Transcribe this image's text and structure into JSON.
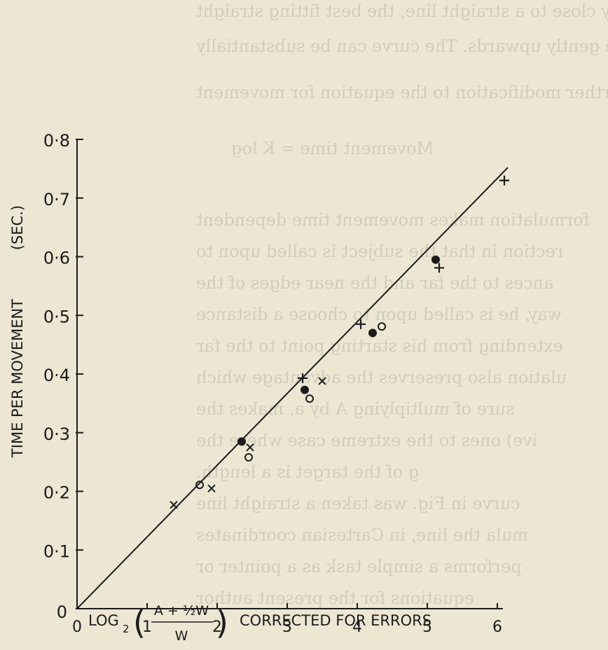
{
  "colors": {
    "paper": "#ece6d3",
    "ink": "#1c1c1c",
    "bleed_through": "#5a554a"
  },
  "bleed_through_lines": [
    "pretty close to a straight line, the best fitting straight",
    "curve gently upwards. The curve can be substantially",
    "ing a further modification to the equation for movement",
    "Movement time = K log",
    "formulation makes movement time dependent",
    "rection in that the subject is called upon to",
    "ances to the far and the near edges of the",
    "way, he is called upon to choose a distance",
    "extending from his starting point to the far",
    "ulation also preserves the advantage which",
    "sure of multiplying A by a, makes the",
    "ive) ones to the extreme case where the",
    "g of the target is a length.",
    "curve in Fig. was taken a straight line",
    "mula the line, in Cartesian coordinates",
    "performs a simple task as a pointer or",
    "equations for the present author"
  ],
  "chart_data": {
    "type": "scatter",
    "xlabel": "LOG₂ ( A + ½W / W ) CORRECTED FOR ERRORS",
    "xlabel_parts": {
      "prefix": "LOG",
      "subscript": "2",
      "numerator": "A + ½W",
      "denominator": "W",
      "suffix": "CORRECTED FOR ERRORS"
    },
    "ylabel": "TIME PER MOVEMENT (SEC.)",
    "ylabel_parts": {
      "main": "TIME PER MOVEMENT",
      "unit": "(SEC.)"
    },
    "xlim": [
      0,
      6.5
    ],
    "ylim": [
      0,
      0.8
    ],
    "x_ticks": [
      0,
      1,
      2,
      3,
      4,
      5,
      6
    ],
    "x_tick_labels": [
      "0",
      "1",
      "2",
      "3",
      "4",
      "5",
      "6"
    ],
    "y_ticks": [
      0,
      0.1,
      0.2,
      0.3,
      0.4,
      0.5,
      0.6,
      0.7,
      0.8
    ],
    "y_tick_labels": [
      "0",
      "0·1",
      "0·2",
      "0·3",
      "0·4",
      "0·5",
      "0·6",
      "0·7",
      "0·8"
    ],
    "grid": false,
    "legend": "none",
    "series": [
      {
        "marker": "filled-circle",
        "x": [
          2.35,
          3.25,
          4.22,
          5.12
        ],
        "y": [
          0.285,
          0.373,
          0.47,
          0.595
        ]
      },
      {
        "marker": "open-circle",
        "x": [
          1.75,
          2.45,
          3.32,
          4.35
        ],
        "y": [
          0.211,
          0.258,
          0.358,
          0.481
        ]
      },
      {
        "marker": "cross",
        "x": [
          1.38,
          1.92,
          2.47,
          3.5
        ],
        "y": [
          0.177,
          0.205,
          0.275,
          0.388
        ]
      },
      {
        "marker": "plus",
        "x": [
          3.22,
          4.05,
          5.17,
          6.1
        ],
        "y": [
          0.393,
          0.485,
          0.581,
          0.73
        ]
      }
    ],
    "fit_line": {
      "x": [
        0,
        6.15
      ],
      "y": [
        0,
        0.752
      ]
    }
  }
}
